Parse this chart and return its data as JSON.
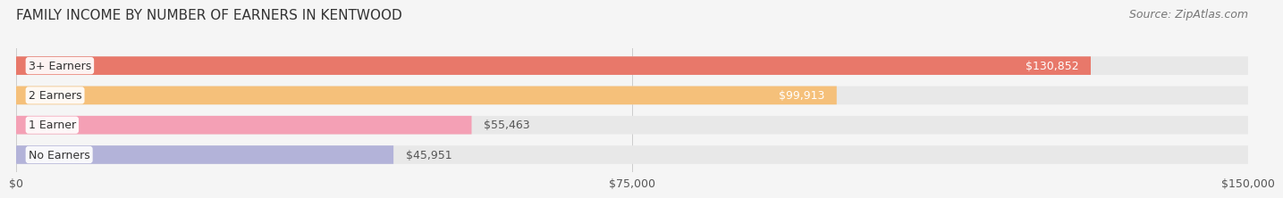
{
  "title": "FAMILY INCOME BY NUMBER OF EARNERS IN KENTWOOD",
  "source": "Source: ZipAtlas.com",
  "categories": [
    "No Earners",
    "1 Earner",
    "2 Earners",
    "3+ Earners"
  ],
  "values": [
    45951,
    55463,
    99913,
    130852
  ],
  "bar_colors": [
    "#b3b3d9",
    "#f4a0b5",
    "#f5c07a",
    "#e8786a"
  ],
  "bar_bg_color": "#e8e8e8",
  "label_colors": [
    "#555555",
    "#555555",
    "#ffffff",
    "#ffffff"
  ],
  "xlim": [
    0,
    150000
  ],
  "xticks": [
    0,
    75000,
    150000
  ],
  "xtick_labels": [
    "$0",
    "$75,000",
    "$150,000"
  ],
  "background_color": "#f5f5f5",
  "title_fontsize": 11,
  "source_fontsize": 9,
  "label_fontsize": 9,
  "value_fontsize": 9,
  "category_fontsize": 9
}
